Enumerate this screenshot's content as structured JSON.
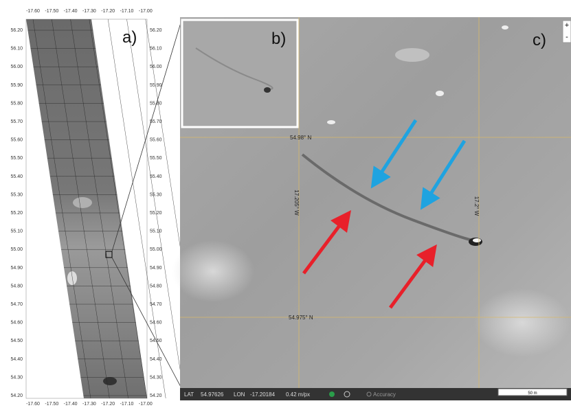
{
  "panel_a": {
    "label": "a)",
    "top_ticks": [
      "-17.60",
      "-17.50",
      "-17.40",
      "-17.30",
      "-17.20",
      "-17.10",
      "-17.00"
    ],
    "bottom_ticks": [
      "-17.60",
      "-17.50",
      "-17.40",
      "-17.30",
      "-17.20",
      "-17.10",
      "-17.00"
    ],
    "left_ticks": [
      "56.20",
      "56.10",
      "56.00",
      "55.90",
      "55.80",
      "55.70",
      "55.60",
      "55.50",
      "55.40",
      "55.30",
      "55.20",
      "55.10",
      "55.00",
      "54.90",
      "54.80",
      "54.70",
      "54.60",
      "54.50",
      "54.40",
      "54.30",
      "54.20"
    ],
    "right_ticks": [
      "56.20",
      "56.10",
      "56.00",
      "55.90",
      "55.80",
      "55.70",
      "55.60",
      "55.50",
      "55.40",
      "55.30",
      "55.20",
      "55.10",
      "55.00",
      "54.90",
      "54.80",
      "54.70",
      "54.60",
      "54.50",
      "54.40",
      "54.30",
      "54.20"
    ]
  },
  "panel_b": {
    "label": "b)"
  },
  "panel_c": {
    "label": "c)",
    "grid_labels": {
      "lat_top": "54.98° N",
      "lat_bottom": "54.975° N",
      "lon_left": "17.205° W",
      "lon_right": "17.2° W"
    },
    "zoom": {
      "in": "+",
      "out": "-"
    },
    "status_bar": {
      "lat_label": "LAT",
      "lat_value": "54.97626",
      "lon_label": "LON",
      "lon_value": "-17.20184",
      "resolution": "0.42 m/px",
      "accuracy": "Accuracy"
    },
    "scale_bar": "50 m"
  }
}
